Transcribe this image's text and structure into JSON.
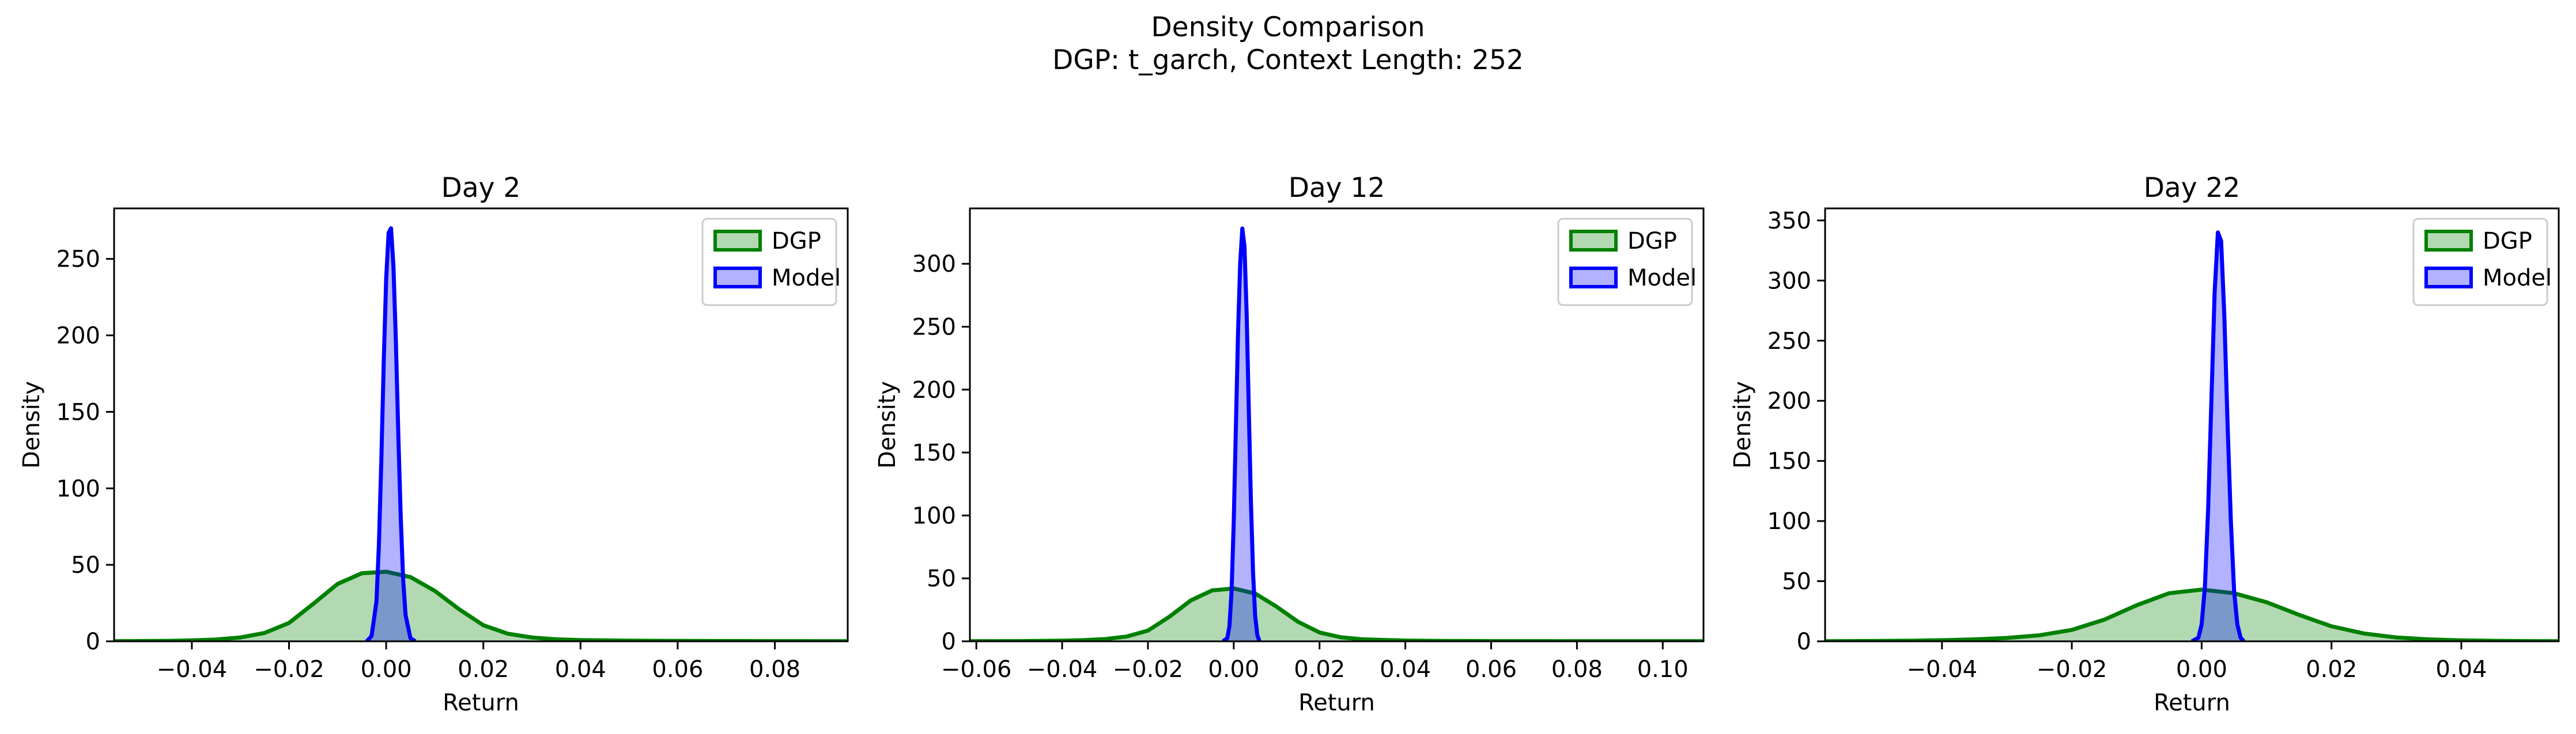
{
  "figure": {
    "title": "Density Comparison",
    "subtitle": "DGP: t_garch, Context Length: 252"
  },
  "colors": {
    "dgp_line": "#008000",
    "dgp_fill": "#008000",
    "model_line": "#0000ff",
    "model_fill": "#0000ff",
    "axis": "#000000",
    "background": "#ffffff"
  },
  "chart_data": [
    {
      "type": "area",
      "title": "Day 2",
      "xlabel": "Return",
      "ylabel": "Density",
      "xlim": [
        -0.056,
        0.095
      ],
      "ylim": [
        0,
        283
      ],
      "xticks": [
        -0.04,
        -0.02,
        0.0,
        0.02,
        0.04,
        0.06,
        0.08
      ],
      "xtick_labels": [
        "−0.04",
        "−0.02",
        "0.00",
        "0.02",
        "0.04",
        "0.06",
        "0.08"
      ],
      "yticks": [
        0,
        50,
        100,
        150,
        200,
        250
      ],
      "ytick_labels": [
        "0",
        "50",
        "100",
        "150",
        "200",
        "250"
      ],
      "legend": "top-right",
      "grid": false,
      "series": [
        {
          "name": "DGP",
          "x": [
            -0.056,
            -0.05,
            -0.045,
            -0.04,
            -0.035,
            -0.03,
            -0.025,
            -0.02,
            -0.015,
            -0.01,
            -0.005,
            0.0,
            0.005,
            0.01,
            0.015,
            0.02,
            0.025,
            0.03,
            0.035,
            0.04,
            0.05,
            0.06,
            0.07,
            0.08,
            0.09,
            0.095
          ],
          "y": [
            0.1,
            0.2,
            0.3,
            0.6,
            1.2,
            2.5,
            5.5,
            12.0,
            24.5,
            37.5,
            44.5,
            45.5,
            42.0,
            33.0,
            21.0,
            10.5,
            5.0,
            2.5,
            1.3,
            0.8,
            0.4,
            0.3,
            0.2,
            0.15,
            0.1,
            0.1
          ]
        },
        {
          "name": "Model",
          "x": [
            -0.004,
            -0.003,
            -0.002,
            -0.0015,
            -0.001,
            -0.0005,
            0.0,
            0.0005,
            0.001,
            0.0015,
            0.002,
            0.0025,
            0.003,
            0.0035,
            0.004,
            0.005,
            0.006
          ],
          "y": [
            0,
            3.5,
            26,
            63,
            118,
            183,
            237,
            267,
            270,
            245,
            196,
            135,
            81,
            40,
            17,
            2,
            0
          ]
        }
      ]
    },
    {
      "type": "area",
      "title": "Day 12",
      "xlabel": "Return",
      "ylabel": "Density",
      "xlim": [
        -0.0615,
        0.1095
      ],
      "ylim": [
        0,
        344
      ],
      "xticks": [
        -0.06,
        -0.04,
        -0.02,
        0.0,
        0.02,
        0.04,
        0.06,
        0.08,
        0.1
      ],
      "xtick_labels": [
        "−0.06",
        "−0.04",
        "−0.02",
        "0.00",
        "0.02",
        "0.04",
        "0.06",
        "0.08",
        "0.10"
      ],
      "yticks": [
        0,
        50,
        100,
        150,
        200,
        250,
        300
      ],
      "ytick_labels": [
        "0",
        "50",
        "100",
        "150",
        "200",
        "250",
        "300"
      ],
      "legend": "top-right",
      "grid": false,
      "series": [
        {
          "name": "DGP",
          "x": [
            -0.0615,
            -0.05,
            -0.04,
            -0.035,
            -0.03,
            -0.025,
            -0.02,
            -0.015,
            -0.01,
            -0.005,
            0.0,
            0.005,
            0.01,
            0.015,
            0.02,
            0.025,
            0.03,
            0.04,
            0.05,
            0.06,
            0.08,
            0.1,
            0.1095
          ],
          "y": [
            0.1,
            0.2,
            0.5,
            0.9,
            1.8,
            3.8,
            8.5,
            19.5,
            32.5,
            40.5,
            42.0,
            38.0,
            27.5,
            15.5,
            7.0,
            3.2,
            1.6,
            0.6,
            0.3,
            0.2,
            0.1,
            0.1,
            0.1
          ]
        },
        {
          "name": "Model",
          "x": [
            -0.0025,
            -0.0015,
            -0.001,
            -0.0005,
            0.0,
            0.0005,
            0.001,
            0.0015,
            0.002,
            0.0025,
            0.003,
            0.0035,
            0.004,
            0.0045,
            0.005,
            0.0055,
            0.006
          ],
          "y": [
            0,
            2.5,
            12,
            40,
            95,
            170,
            245,
            300,
            328,
            314,
            262,
            186,
            112,
            55,
            20,
            5,
            0
          ]
        }
      ]
    },
    {
      "type": "area",
      "title": "Day 22",
      "xlabel": "Return",
      "ylabel": "Density",
      "xlim": [
        -0.058,
        0.055
      ],
      "ylim": [
        0,
        360
      ],
      "xticks": [
        -0.04,
        -0.02,
        0.0,
        0.02,
        0.04
      ],
      "xtick_labels": [
        "−0.04",
        "−0.02",
        "0.00",
        "0.02",
        "0.04"
      ],
      "yticks": [
        0,
        50,
        100,
        150,
        200,
        250,
        300,
        350
      ],
      "ytick_labels": [
        "0",
        "50",
        "100",
        "150",
        "200",
        "250",
        "300",
        "350"
      ],
      "legend": "top-right",
      "grid": false,
      "series": [
        {
          "name": "DGP",
          "x": [
            -0.058,
            -0.05,
            -0.045,
            -0.04,
            -0.035,
            -0.03,
            -0.025,
            -0.02,
            -0.015,
            -0.01,
            -0.005,
            0.0,
            0.005,
            0.01,
            0.015,
            0.02,
            0.025,
            0.03,
            0.035,
            0.04,
            0.045,
            0.05,
            0.055
          ],
          "y": [
            0.1,
            0.3,
            0.5,
            0.9,
            1.6,
            2.8,
            5.0,
            9.5,
            18.0,
            30.0,
            40.0,
            43.0,
            40.0,
            32.5,
            22.0,
            12.5,
            6.5,
            3.2,
            1.6,
            0.8,
            0.4,
            0.2,
            0.1
          ]
        },
        {
          "name": "Model",
          "x": [
            -0.0015,
            -0.0005,
            0.0,
            0.0005,
            0.001,
            0.0015,
            0.002,
            0.0025,
            0.003,
            0.0035,
            0.004,
            0.0045,
            0.005,
            0.0055,
            0.006,
            0.0065
          ],
          "y": [
            0,
            3,
            14,
            45,
            110,
            200,
            290,
            340,
            333,
            270,
            180,
            100,
            42,
            14,
            3,
            0
          ]
        }
      ]
    }
  ]
}
